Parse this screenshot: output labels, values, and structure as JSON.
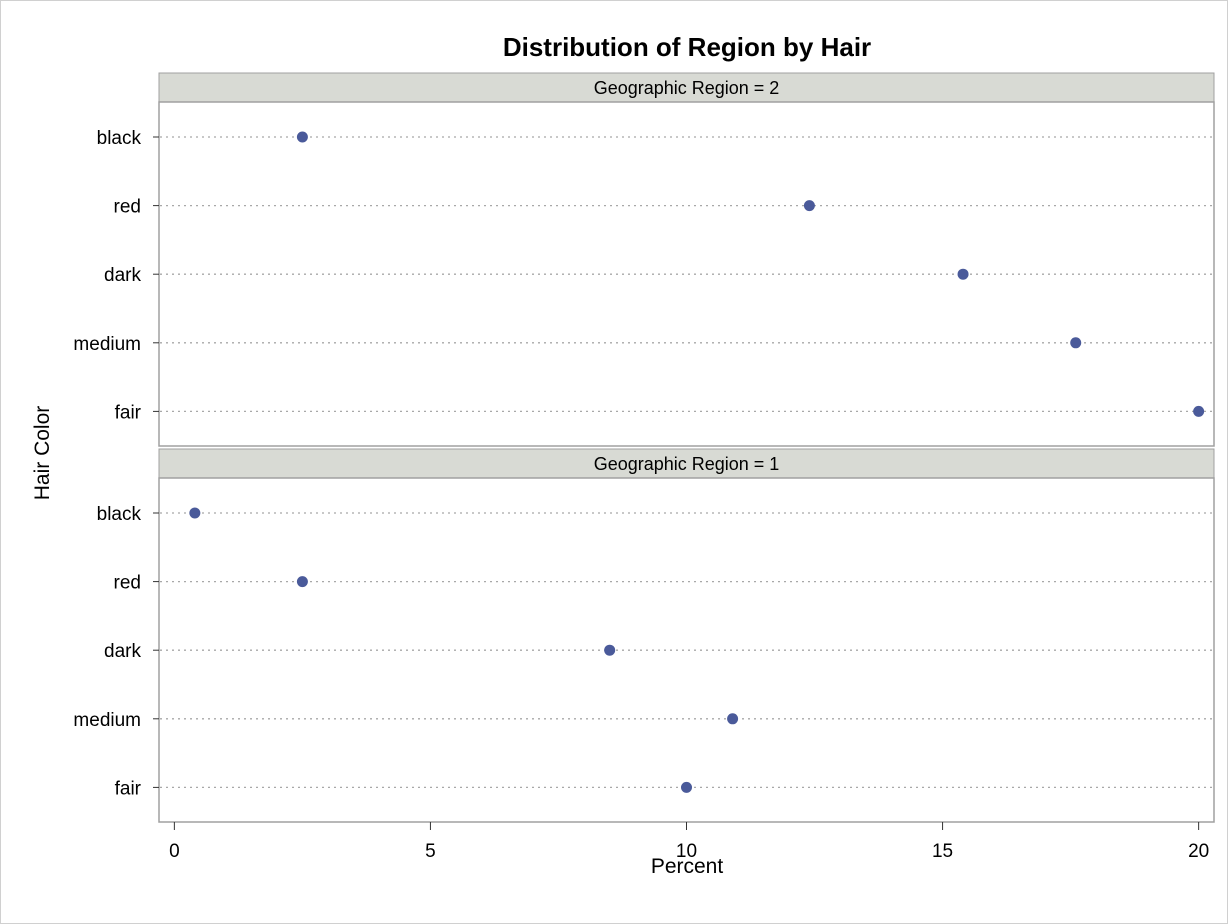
{
  "chart_data": {
    "type": "scatter",
    "title": "Distribution of Region by Hair",
    "xlabel": "Percent",
    "ylabel": "Hair Color",
    "xlim": [
      -0.3,
      20.3
    ],
    "xticks": [
      0,
      5,
      10,
      15,
      20
    ],
    "categories": [
      "black",
      "red",
      "dark",
      "medium",
      "fair"
    ],
    "marker_color": "#4a5a9a",
    "gridlines": "dotted horizontal reference lines per category",
    "panels": [
      {
        "label": "Geographic Region = 2",
        "values": [
          2.5,
          12.4,
          15.4,
          17.6,
          20.0
        ]
      },
      {
        "label": "Geographic Region = 1",
        "values": [
          0.4,
          2.5,
          8.5,
          10.9,
          10.0
        ]
      }
    ]
  }
}
